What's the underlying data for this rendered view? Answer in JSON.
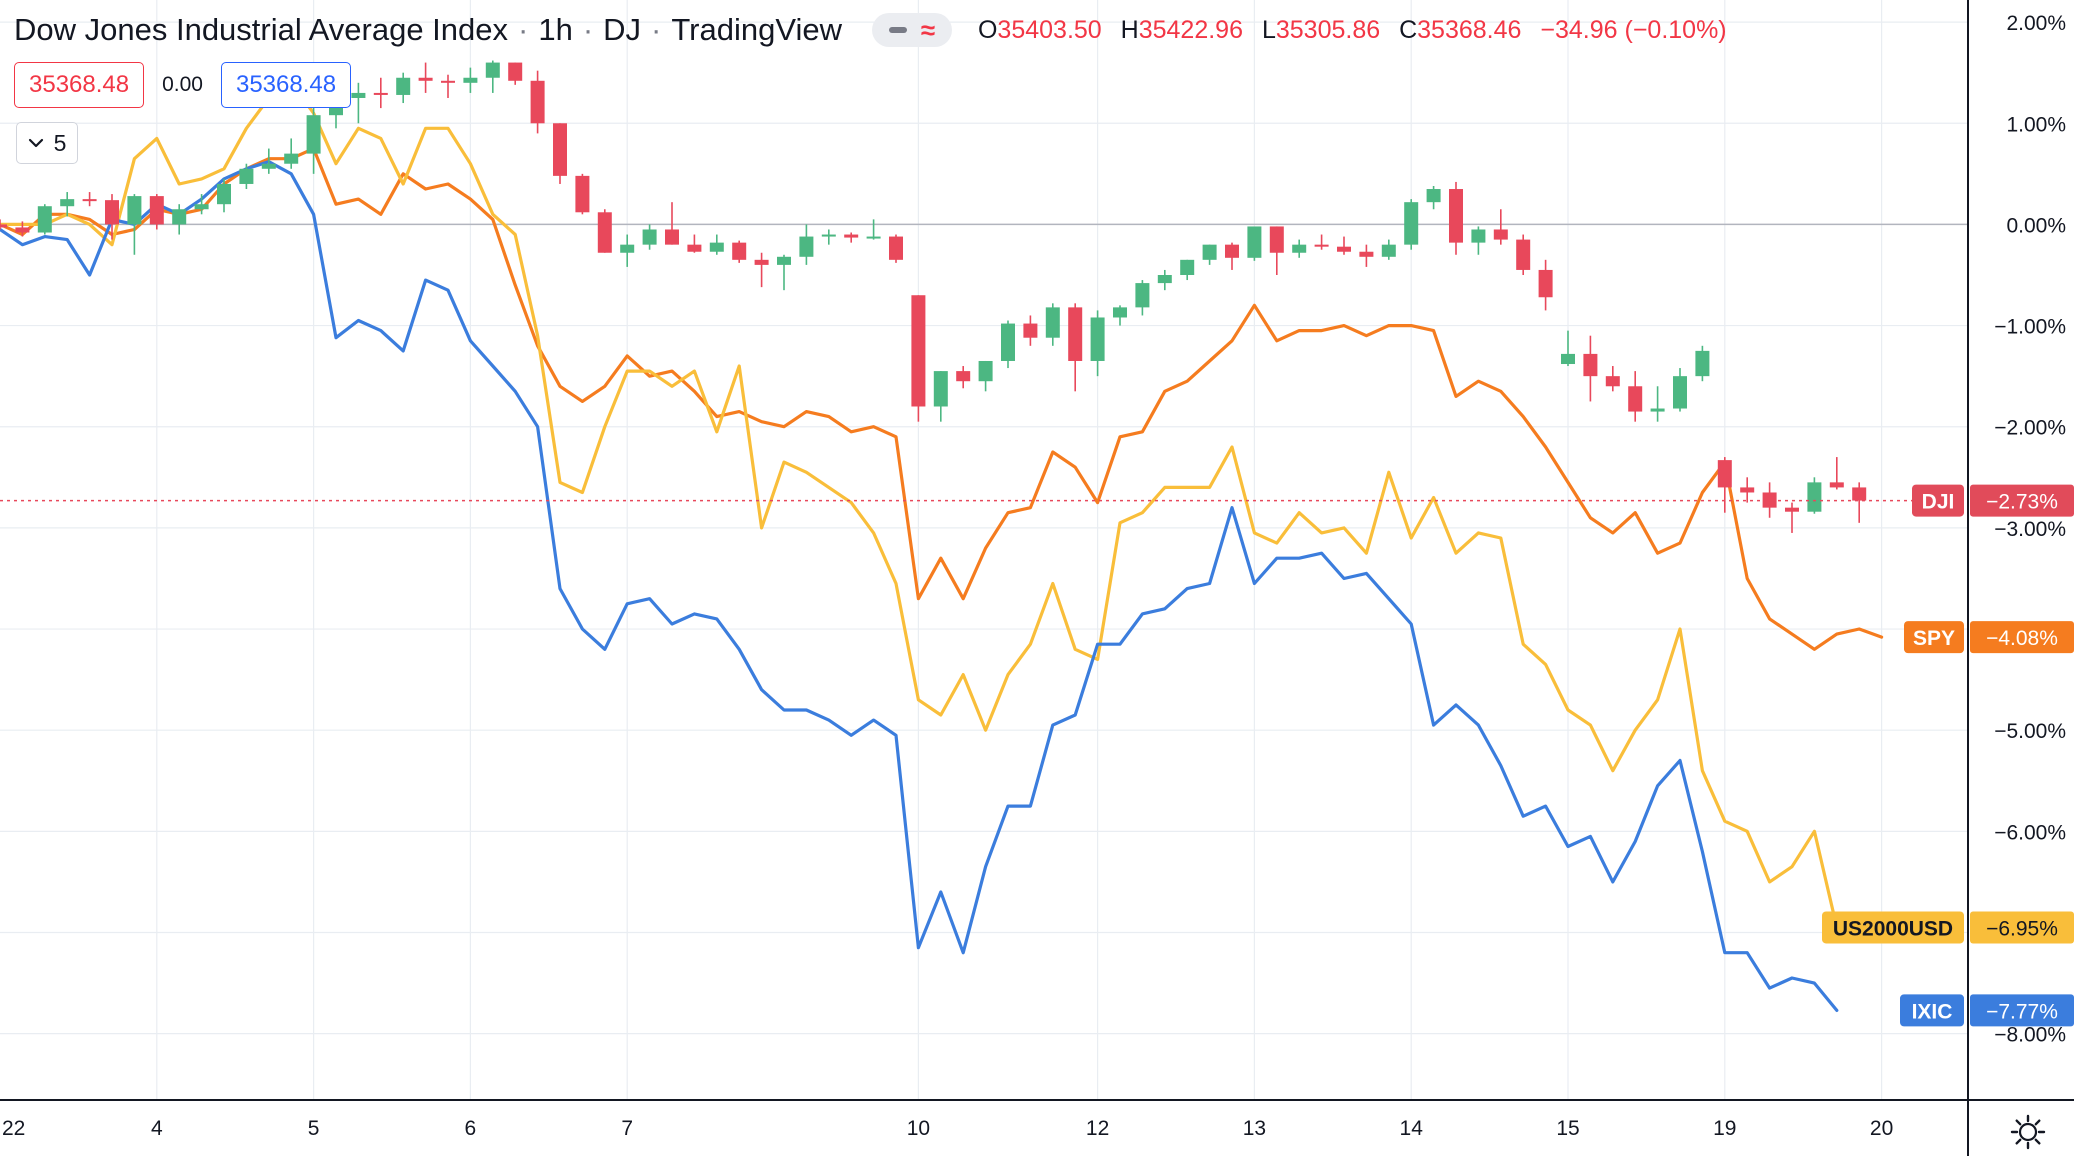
{
  "header": {
    "symbol_name": "Dow Jones Industrial Average Index",
    "interval": "1h",
    "exchange": "DJ",
    "brand": "TradingView",
    "ohlc": {
      "o_label": "O",
      "o_value": "35403.50",
      "h_label": "H",
      "h_value": "35422.96",
      "l_label": "L",
      "l_value": "35305.86",
      "c_label": "C",
      "c_value": "35368.46",
      "change": "−34.96 (−0.10%)"
    },
    "sell_price": "35368.48",
    "spread": "0.00",
    "buy_price": "35368.48",
    "indicators_count": "5"
  },
  "icons": {
    "collapse": "chevron-down-icon",
    "pill_dash": "minus-icon",
    "pill_wave": "approx-icon",
    "settings": "gear-icon"
  },
  "colors": {
    "up": "#26a69a",
    "up_candle": "#4cb782",
    "down_candle": "#e8485b",
    "dji_badge": "#e14b5a",
    "spy": "#f57c1f",
    "us2000": "#f9be3a",
    "ixic": "#3b7ddd",
    "grid": "#e9edf2",
    "zero_line": "#b2b5be"
  },
  "chart_data": {
    "type": "line",
    "y_unit": "%",
    "ylim": [
      -8.3,
      2.1
    ],
    "y_ticks": [
      "2.00%",
      "1.00%",
      "0.00%",
      "−1.00%",
      "−2.00%",
      "−3.00%",
      "−4.00%",
      "−5.00%",
      "−6.00%",
      "−7.00%",
      "−8.00%"
    ],
    "y_tick_values": [
      2,
      1,
      0,
      -1,
      -2,
      -3,
      -4,
      -5,
      -6,
      -7,
      -8
    ],
    "x_ticks": [
      {
        "label": "22",
        "i": 0
      },
      {
        "label": "4",
        "i": 7
      },
      {
        "label": "5",
        "i": 14
      },
      {
        "label": "6",
        "i": 21
      },
      {
        "label": "7",
        "i": 28
      },
      {
        "label": "10",
        "i": 41
      },
      {
        "label": "12",
        "i": 49
      },
      {
        "label": "13",
        "i": 56
      },
      {
        "label": "14",
        "i": 63
      },
      {
        "label": "15",
        "i": 70
      },
      {
        "label": "19",
        "i": 77
      },
      {
        "label": "20",
        "i": 84
      }
    ],
    "grid": true,
    "candles": {
      "name": "DJI",
      "ohlc": [
        [
          0.0,
          0.05,
          -0.05,
          -0.03
        ],
        [
          -0.03,
          0.03,
          -0.12,
          -0.08
        ],
        [
          -0.08,
          0.2,
          -0.1,
          0.18
        ],
        [
          0.18,
          0.32,
          0.08,
          0.25
        ],
        [
          0.25,
          0.32,
          0.18,
          0.24
        ],
        [
          0.24,
          0.3,
          -0.15,
          0.0
        ],
        [
          0.0,
          0.3,
          -0.3,
          0.28
        ],
        [
          0.28,
          0.3,
          -0.05,
          0.0
        ],
        [
          0.0,
          0.2,
          -0.1,
          0.15
        ],
        [
          0.15,
          0.3,
          0.1,
          0.2
        ],
        [
          0.2,
          0.45,
          0.12,
          0.4
        ],
        [
          0.4,
          0.6,
          0.35,
          0.55
        ],
        [
          0.55,
          0.75,
          0.5,
          0.6
        ],
        [
          0.6,
          0.85,
          0.55,
          0.7
        ],
        [
          0.7,
          1.2,
          0.5,
          1.08
        ],
        [
          1.08,
          1.3,
          0.95,
          1.25
        ],
        [
          1.25,
          1.4,
          1.0,
          1.3
        ],
        [
          1.3,
          1.45,
          1.15,
          1.28
        ],
        [
          1.28,
          1.5,
          1.2,
          1.45
        ],
        [
          1.45,
          1.6,
          1.3,
          1.42
        ],
        [
          1.42,
          1.48,
          1.25,
          1.4
        ],
        [
          1.4,
          1.55,
          1.3,
          1.45
        ],
        [
          1.45,
          1.62,
          1.3,
          1.6
        ],
        [
          1.6,
          1.6,
          1.38,
          1.42
        ],
        [
          1.42,
          1.52,
          0.9,
          1.0
        ],
        [
          1.0,
          1.0,
          0.4,
          0.48
        ],
        [
          0.48,
          0.5,
          0.1,
          0.12
        ],
        [
          0.12,
          0.15,
          -0.28,
          -0.28
        ],
        [
          -0.28,
          -0.1,
          -0.42,
          -0.2
        ],
        [
          -0.2,
          0.0,
          -0.25,
          -0.05
        ],
        [
          -0.05,
          0.22,
          -0.2,
          -0.2
        ],
        [
          -0.2,
          -0.1,
          -0.28,
          -0.27
        ],
        [
          -0.27,
          -0.1,
          -0.3,
          -0.18
        ],
        [
          -0.18,
          -0.16,
          -0.38,
          -0.35
        ],
        [
          -0.35,
          -0.28,
          -0.62,
          -0.4
        ],
        [
          -0.4,
          -0.3,
          -0.65,
          -0.32
        ],
        [
          -0.32,
          0.0,
          -0.4,
          -0.12
        ],
        [
          -0.12,
          -0.05,
          -0.2,
          -0.1
        ],
        [
          -0.1,
          -0.08,
          -0.18,
          -0.13
        ],
        [
          -0.13,
          0.05,
          -0.15,
          -0.12
        ],
        [
          -0.12,
          -0.1,
          -0.38,
          -0.35
        ],
        [
          -0.7,
          -0.7,
          -1.95,
          -1.8
        ],
        [
          -1.8,
          -1.45,
          -1.95,
          -1.45
        ],
        [
          -1.45,
          -1.4,
          -1.62,
          -1.55
        ],
        [
          -1.55,
          -1.35,
          -1.65,
          -1.35
        ],
        [
          -1.35,
          -0.95,
          -1.42,
          -0.98
        ],
        [
          -0.98,
          -0.9,
          -1.2,
          -1.12
        ],
        [
          -1.12,
          -0.78,
          -1.2,
          -0.82
        ],
        [
          -0.82,
          -0.78,
          -1.65,
          -1.35
        ],
        [
          -1.35,
          -0.85,
          -1.5,
          -0.92
        ],
        [
          -0.92,
          -0.8,
          -1.0,
          -0.82
        ],
        [
          -0.82,
          -0.55,
          -0.9,
          -0.58
        ],
        [
          -0.58,
          -0.45,
          -0.65,
          -0.5
        ],
        [
          -0.5,
          -0.35,
          -0.55,
          -0.35
        ],
        [
          -0.35,
          -0.2,
          -0.4,
          -0.2
        ],
        [
          -0.2,
          -0.18,
          -0.45,
          -0.33
        ],
        [
          -0.33,
          -0.05,
          -0.36,
          -0.02
        ],
        [
          -0.02,
          -0.02,
          -0.5,
          -0.28
        ],
        [
          -0.28,
          -0.15,
          -0.33,
          -0.2
        ],
        [
          -0.2,
          -0.1,
          -0.25,
          -0.22
        ],
        [
          -0.22,
          -0.12,
          -0.3,
          -0.27
        ],
        [
          -0.27,
          -0.2,
          -0.42,
          -0.32
        ],
        [
          -0.32,
          -0.15,
          -0.35,
          -0.2
        ],
        [
          -0.2,
          0.25,
          -0.25,
          0.22
        ],
        [
          0.22,
          0.38,
          0.15,
          0.35
        ],
        [
          0.35,
          0.42,
          -0.3,
          -0.18
        ],
        [
          -0.18,
          -0.02,
          -0.3,
          -0.05
        ],
        [
          -0.05,
          0.15,
          -0.2,
          -0.15
        ],
        [
          -0.15,
          -0.1,
          -0.5,
          -0.45
        ],
        [
          -0.45,
          -0.35,
          -0.85,
          -0.72
        ],
        [
          -1.38,
          -1.05,
          -1.4,
          -1.28
        ],
        [
          -1.28,
          -1.1,
          -1.75,
          -1.5
        ],
        [
          -1.5,
          -1.4,
          -1.65,
          -1.6
        ],
        [
          -1.6,
          -1.45,
          -1.95,
          -1.85
        ],
        [
          -1.85,
          -1.6,
          -1.95,
          -1.82
        ],
        [
          -1.82,
          -1.42,
          -1.85,
          -1.5
        ],
        [
          -1.5,
          -1.2,
          -1.55,
          -1.25
        ],
        [
          -2.33,
          -2.3,
          -2.85,
          -2.6
        ],
        [
          -2.6,
          -2.5,
          -2.75,
          -2.65
        ],
        [
          -2.65,
          -2.55,
          -2.9,
          -2.8
        ],
        [
          -2.8,
          -2.75,
          -3.05,
          -2.84
        ],
        [
          -2.84,
          -2.5,
          -2.86,
          -2.55
        ],
        [
          -2.55,
          -2.3,
          -2.62,
          -2.6
        ],
        [
          -2.6,
          -2.55,
          -2.95,
          -2.73
        ]
      ],
      "last_label": "DJI",
      "last_value": "−2.73%",
      "last_numeric": -2.73
    },
    "series": [
      {
        "name": "SPY",
        "last_value": "−4.08%",
        "values": [
          0.0,
          -0.1,
          0.1,
          0.1,
          0.05,
          -0.1,
          -0.05,
          0.15,
          0.1,
          0.15,
          0.4,
          0.55,
          0.65,
          0.65,
          0.75,
          0.2,
          0.25,
          0.1,
          0.5,
          0.35,
          0.4,
          0.25,
          0.05,
          -0.6,
          -1.2,
          -1.6,
          -1.75,
          -1.6,
          -1.3,
          -1.5,
          -1.45,
          -1.65,
          -1.9,
          -1.85,
          -1.95,
          -2.0,
          -1.85,
          -1.9,
          -2.05,
          -2.0,
          -2.1,
          -3.7,
          -3.3,
          -3.7,
          -3.2,
          -2.85,
          -2.8,
          -2.25,
          -2.4,
          -2.75,
          -2.1,
          -2.05,
          -1.65,
          -1.55,
          -1.35,
          -1.15,
          -0.8,
          -1.15,
          -1.05,
          -1.05,
          -1.0,
          -1.1,
          -1.0,
          -1.0,
          -1.05,
          -1.7,
          -1.55,
          -1.65,
          -1.9,
          -2.2,
          -2.55,
          -2.9,
          -3.05,
          -2.85,
          -3.25,
          -3.15,
          -2.65,
          -2.35,
          -3.5,
          -3.9,
          -4.05,
          -4.2,
          -4.05,
          -4.0,
          -4.08
        ]
      },
      {
        "name": "US2000USD",
        "last_value": "−6.95%",
        "values": [
          0.0,
          0.0,
          0.0,
          0.1,
          0.0,
          -0.2,
          0.65,
          0.85,
          0.4,
          0.45,
          0.55,
          0.95,
          1.25,
          1.4,
          1.1,
          0.6,
          0.95,
          0.85,
          0.4,
          0.95,
          0.95,
          0.6,
          0.1,
          -0.1,
          -1.1,
          -2.55,
          -2.65,
          -2.0,
          -1.45,
          -1.45,
          -1.6,
          -1.45,
          -2.05,
          -1.4,
          -3.0,
          -2.35,
          -2.45,
          -2.6,
          -2.75,
          -3.05,
          -3.55,
          -4.7,
          -4.85,
          -4.45,
          -5.0,
          -4.45,
          -4.15,
          -3.55,
          -4.2,
          -4.3,
          -2.95,
          -2.85,
          -2.6,
          -2.6,
          -2.6,
          -2.2,
          -3.05,
          -3.15,
          -2.85,
          -3.05,
          -3.0,
          -3.25,
          -2.45,
          -3.1,
          -2.7,
          -3.25,
          -3.05,
          -3.1,
          -4.15,
          -4.35,
          -4.8,
          -4.95,
          -5.4,
          -5.0,
          -4.7,
          -4.0,
          -5.4,
          -5.9,
          -6.0,
          -6.5,
          -6.35,
          -6.0,
          -6.95
        ]
      },
      {
        "name": "IXIC",
        "last_value": "−7.77%",
        "values": [
          -0.05,
          -0.2,
          -0.12,
          -0.15,
          -0.5,
          0.05,
          0.0,
          0.2,
          0.1,
          0.25,
          0.45,
          0.55,
          0.62,
          0.5,
          0.1,
          -1.12,
          -0.95,
          -1.05,
          -1.25,
          -0.55,
          -0.65,
          -1.15,
          -1.4,
          -1.65,
          -2.0,
          -3.6,
          -4.0,
          -4.2,
          -3.75,
          -3.7,
          -3.95,
          -3.85,
          -3.9,
          -4.2,
          -4.6,
          -4.8,
          -4.8,
          -4.9,
          -5.05,
          -4.9,
          -5.05,
          -7.15,
          -6.6,
          -7.2,
          -6.35,
          -5.75,
          -5.75,
          -4.95,
          -4.85,
          -4.15,
          -4.15,
          -3.85,
          -3.8,
          -3.6,
          -3.55,
          -2.8,
          -3.55,
          -3.3,
          -3.3,
          -3.25,
          -3.5,
          -3.45,
          -3.7,
          -3.95,
          -4.95,
          -4.75,
          -4.95,
          -5.35,
          -5.85,
          -5.75,
          -6.15,
          -6.05,
          -6.5,
          -6.1,
          -5.55,
          -5.3,
          -6.2,
          -7.2,
          -7.2,
          -7.55,
          -7.45,
          -7.5,
          -7.77
        ]
      }
    ]
  }
}
